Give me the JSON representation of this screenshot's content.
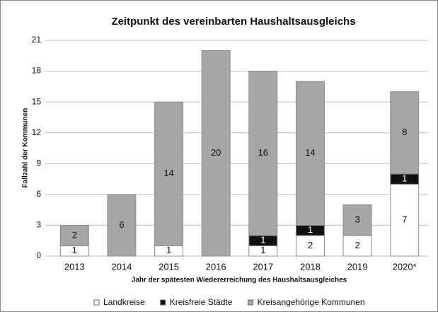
{
  "chart_data": {
    "type": "stacked_bar",
    "title": "Zeitpunkt des vereinbarten Haushaltsausgleichs",
    "ylabel": "Fallzahl der Kommunen",
    "xlabel": "Jahr der spätesten Wiedererreichung des Haushaltsausgleiches",
    "categories": [
      "2013",
      "2014",
      "2015",
      "2016",
      "2017",
      "2018",
      "2019",
      "2020*"
    ],
    "series": [
      {
        "name": "Landkreise",
        "color": "#ffffff",
        "values": [
          1,
          0,
          1,
          0,
          1,
          2,
          2,
          7
        ]
      },
      {
        "name": "Kreisfreie Städte",
        "color": "#111111",
        "values": [
          0,
          0,
          0,
          0,
          1,
          1,
          0,
          1
        ]
      },
      {
        "name": "Kreisangehörige Kommunen",
        "color": "#a6a6a6",
        "values": [
          2,
          6,
          14,
          20,
          16,
          14,
          3,
          8
        ]
      }
    ],
    "ylim": [
      0,
      21
    ],
    "yticks": [
      0,
      3,
      6,
      9,
      12,
      15,
      18,
      21
    ],
    "grid": true,
    "legend": "bottom"
  }
}
